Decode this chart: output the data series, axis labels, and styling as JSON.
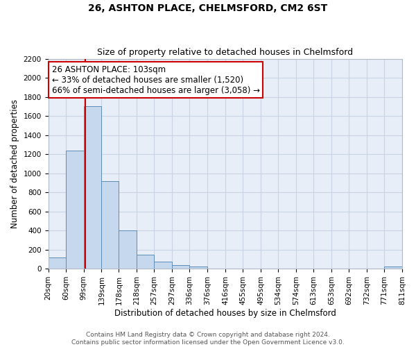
{
  "title": "26, ASHTON PLACE, CHELMSFORD, CM2 6ST",
  "subtitle": "Size of property relative to detached houses in Chelmsford",
  "xlabel": "Distribution of detached houses by size in Chelmsford",
  "ylabel": "Number of detached properties",
  "bin_edges": [
    20,
    60,
    99,
    139,
    178,
    218,
    257,
    297,
    336,
    376,
    416,
    455,
    495,
    534,
    574,
    613,
    653,
    692,
    732,
    771,
    811
  ],
  "bin_labels": [
    "20sqm",
    "60sqm",
    "99sqm",
    "139sqm",
    "178sqm",
    "218sqm",
    "257sqm",
    "297sqm",
    "336sqm",
    "376sqm",
    "416sqm",
    "455sqm",
    "495sqm",
    "534sqm",
    "574sqm",
    "613sqm",
    "653sqm",
    "692sqm",
    "732sqm",
    "771sqm",
    "811sqm"
  ],
  "counts": [
    120,
    1240,
    1700,
    920,
    400,
    145,
    70,
    35,
    25,
    0,
    0,
    0,
    0,
    0,
    0,
    0,
    0,
    0,
    0,
    25
  ],
  "bar_facecolor": "#c5d8ed",
  "bar_edgecolor": "#5b8db8",
  "bar_alpha": 1.0,
  "grid_color": "#c8d4e4",
  "background_color": "#e8eef8",
  "vline_x": 103,
  "vline_color": "#cc0000",
  "annotation_title": "26 ASHTON PLACE: 103sqm",
  "annotation_line1": "← 33% of detached houses are smaller (1,520)",
  "annotation_line2": "66% of semi-detached houses are larger (3,058) →",
  "annotation_box_edgecolor": "#cc0000",
  "ylim": [
    0,
    2200
  ],
  "yticks": [
    0,
    200,
    400,
    600,
    800,
    1000,
    1200,
    1400,
    1600,
    1800,
    2000,
    2200
  ],
  "footer1": "Contains HM Land Registry data © Crown copyright and database right 2024.",
  "footer2": "Contains public sector information licensed under the Open Government Licence v3.0.",
  "title_fontsize": 10,
  "subtitle_fontsize": 9,
  "axis_label_fontsize": 8.5,
  "tick_fontsize": 7.5,
  "annotation_fontsize": 8.5,
  "footer_fontsize": 6.5
}
